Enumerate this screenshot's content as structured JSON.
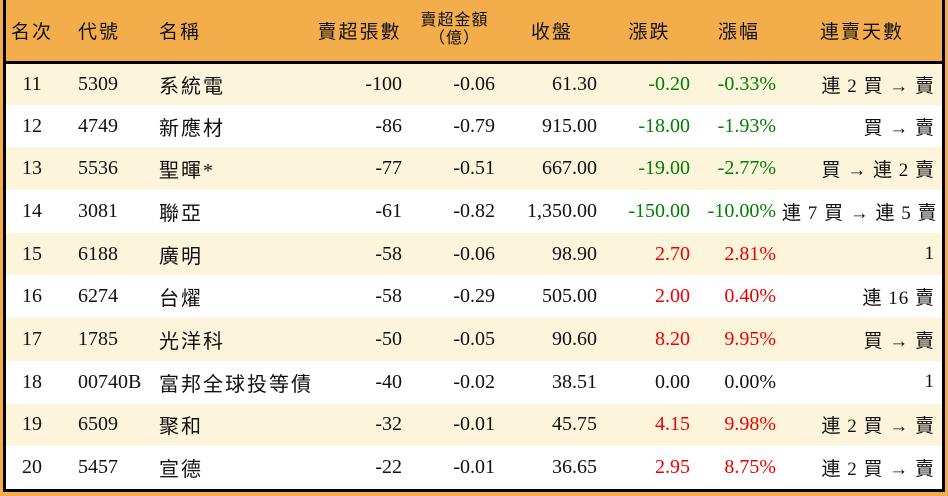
{
  "colors": {
    "page_bg": "#f3ae4b",
    "header_bg": "#f3ae4b",
    "row_alt_bg": "#fdf4dc",
    "border": "#000000",
    "text": "#111111",
    "up": "#ee0000",
    "down": "#008000"
  },
  "chart_data": {
    "type": "table",
    "title": "",
    "columns": [
      {
        "key": "rank",
        "label": "名次"
      },
      {
        "key": "code",
        "label": "代號"
      },
      {
        "key": "name",
        "label": "名稱"
      },
      {
        "key": "volume",
        "label": "賣超張數"
      },
      {
        "key": "amount",
        "label": "賣超金額",
        "label2": "（億）"
      },
      {
        "key": "close",
        "label": "收盤"
      },
      {
        "key": "change",
        "label": "漲跌"
      },
      {
        "key": "changePct",
        "label": "漲幅"
      },
      {
        "key": "days",
        "label": "連賣天數"
      }
    ],
    "rows": [
      {
        "rank": "11",
        "code": "5309",
        "name": "系統電",
        "volume": "-100",
        "amount": "-0.06",
        "close": "61.30",
        "change": "-0.20",
        "changePct": "-0.33%",
        "days": "連 2 買 → 賣",
        "trend": "down"
      },
      {
        "rank": "12",
        "code": "4749",
        "name": "新應材",
        "volume": "-86",
        "amount": "-0.79",
        "close": "915.00",
        "change": "-18.00",
        "changePct": "-1.93%",
        "days": "買 → 賣",
        "trend": "down"
      },
      {
        "rank": "13",
        "code": "5536",
        "name": "聖暉*",
        "volume": "-77",
        "amount": "-0.51",
        "close": "667.00",
        "change": "-19.00",
        "changePct": "-2.77%",
        "days": "買 → 連 2 賣",
        "trend": "down"
      },
      {
        "rank": "14",
        "code": "3081",
        "name": "聯亞",
        "volume": "-61",
        "amount": "-0.82",
        "close": "1,350.00",
        "change": "-150.00",
        "changePct": "-10.00%",
        "days": "連 7 買 → 連 5 賣",
        "trend": "down"
      },
      {
        "rank": "15",
        "code": "6188",
        "name": "廣明",
        "volume": "-58",
        "amount": "-0.06",
        "close": "98.90",
        "change": "2.70",
        "changePct": "2.81%",
        "days": "1",
        "trend": "up"
      },
      {
        "rank": "16",
        "code": "6274",
        "name": "台燿",
        "volume": "-58",
        "amount": "-0.29",
        "close": "505.00",
        "change": "2.00",
        "changePct": "0.40%",
        "days": "連 16 賣",
        "trend": "up"
      },
      {
        "rank": "17",
        "code": "1785",
        "name": "光洋科",
        "volume": "-50",
        "amount": "-0.05",
        "close": "90.60",
        "change": "8.20",
        "changePct": "9.95%",
        "days": "買 → 賣",
        "trend": "up"
      },
      {
        "rank": "18",
        "code": "00740B",
        "name": "富邦全球投等債",
        "volume": "-40",
        "amount": "-0.02",
        "close": "38.51",
        "change": "0.00",
        "changePct": "0.00%",
        "days": "1",
        "trend": "flat"
      },
      {
        "rank": "19",
        "code": "6509",
        "name": "聚和",
        "volume": "-32",
        "amount": "-0.01",
        "close": "45.75",
        "change": "4.15",
        "changePct": "9.98%",
        "days": "連 2 買 → 賣",
        "trend": "up"
      },
      {
        "rank": "20",
        "code": "5457",
        "name": "宣德",
        "volume": "-22",
        "amount": "-0.01",
        "close": "36.65",
        "change": "2.95",
        "changePct": "8.75%",
        "days": "連 2 買 → 賣",
        "trend": "up"
      }
    ]
  }
}
